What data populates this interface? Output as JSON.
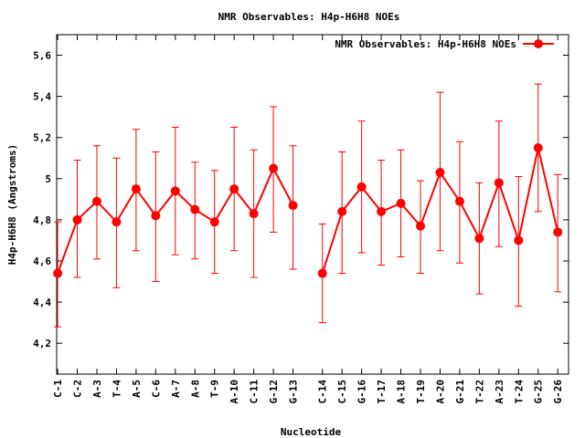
{
  "chart_data": {
    "type": "line",
    "title": "NMR Observables: H4p-H6H8 NOEs",
    "xlabel": "Nucleotide",
    "ylabel": "H4p-H6H8 (Angstroms)",
    "ylim": [
      4.05,
      5.7
    ],
    "yticks": [
      "4,2",
      "4,4",
      "4,6",
      "4,8",
      "5",
      "5,2",
      "5,4",
      "5,6"
    ],
    "ytick_values": [
      4.2,
      4.4,
      4.6,
      4.8,
      5.0,
      5.2,
      5.4,
      5.6
    ],
    "grid": false,
    "legend_position": "top-right",
    "series_color": "#ff0000",
    "series": [
      {
        "name": "NMR Observables: H4p-H6H8 NOEs",
        "segments": [
          {
            "categories": [
              "C-1",
              "C-2",
              "A-3",
              "T-4",
              "A-5",
              "C-6",
              "A-7",
              "A-8",
              "T-9",
              "A-10",
              "C-11",
              "G-12",
              "G-13"
            ],
            "x": [
              1,
              2,
              3,
              4,
              5,
              6,
              7,
              8,
              9,
              10,
              11,
              12,
              13
            ],
            "values": [
              4.54,
              4.8,
              4.89,
              4.79,
              4.95,
              4.82,
              4.94,
              4.85,
              4.79,
              4.95,
              4.83,
              5.05,
              4.87
            ],
            "err_low": [
              4.28,
              4.52,
              4.61,
              4.47,
              4.65,
              4.5,
              4.63,
              4.61,
              4.54,
              4.65,
              4.52,
              4.74,
              4.56
            ],
            "err_high": [
              4.79,
              5.09,
              5.16,
              5.1,
              5.24,
              5.13,
              5.25,
              5.08,
              5.04,
              5.25,
              5.14,
              5.35,
              5.16
            ]
          },
          {
            "categories": [
              "C-14",
              "C-15",
              "G-16",
              "T-17",
              "A-18",
              "T-19",
              "A-20",
              "G-21",
              "T-22",
              "A-23",
              "T-24",
              "G-25",
              "G-26"
            ],
            "x": [
              14.5,
              15.5,
              16.5,
              17.5,
              18.5,
              19.5,
              20.5,
              21.5,
              22.5,
              23.5,
              24.5,
              25.5,
              26.5
            ],
            "values": [
              4.54,
              4.84,
              4.96,
              4.84,
              4.88,
              4.77,
              5.03,
              4.89,
              4.71,
              4.98,
              4.7,
              5.15,
              4.74
            ],
            "err_low": [
              4.3,
              4.54,
              4.64,
              4.58,
              4.62,
              4.54,
              4.65,
              4.59,
              4.44,
              4.67,
              4.38,
              4.84,
              4.45
            ],
            "err_high": [
              4.78,
              5.13,
              5.28,
              5.09,
              5.14,
              4.99,
              5.42,
              5.18,
              4.98,
              5.28,
              5.01,
              5.46,
              5.02
            ]
          }
        ]
      }
    ]
  }
}
